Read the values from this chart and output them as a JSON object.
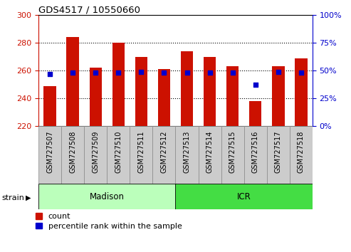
{
  "title": "GDS4517 / 10550660",
  "samples": [
    "GSM727507",
    "GSM727508",
    "GSM727509",
    "GSM727510",
    "GSM727511",
    "GSM727512",
    "GSM727513",
    "GSM727514",
    "GSM727515",
    "GSM727516",
    "GSM727517",
    "GSM727518"
  ],
  "counts": [
    249,
    284,
    262,
    280,
    270,
    261,
    274,
    270,
    263,
    238,
    263,
    269
  ],
  "percentiles": [
    47,
    48,
    48,
    48,
    49,
    48,
    48,
    48,
    48,
    37,
    49,
    48
  ],
  "ylim_left": [
    220,
    300
  ],
  "ylim_right": [
    0,
    100
  ],
  "yticks_left": [
    220,
    240,
    260,
    280,
    300
  ],
  "yticks_right": [
    0,
    25,
    50,
    75,
    100
  ],
  "bar_color": "#cc1100",
  "dot_color": "#0000cc",
  "bar_bottom": 220,
  "strain_groups": [
    {
      "label": "Madison",
      "start": 0,
      "end": 6,
      "color": "#bbffbb"
    },
    {
      "label": "ICR",
      "start": 6,
      "end": 12,
      "color": "#44dd44"
    }
  ],
  "strain_label": "strain",
  "legend_count_label": "count",
  "legend_pct_label": "percentile rank within the sample",
  "tick_label_color_left": "#cc1100",
  "tick_label_color_right": "#0000cc",
  "bar_width": 0.55,
  "xlabel_box_color": "#cccccc",
  "xlabel_box_edge": "#888888"
}
